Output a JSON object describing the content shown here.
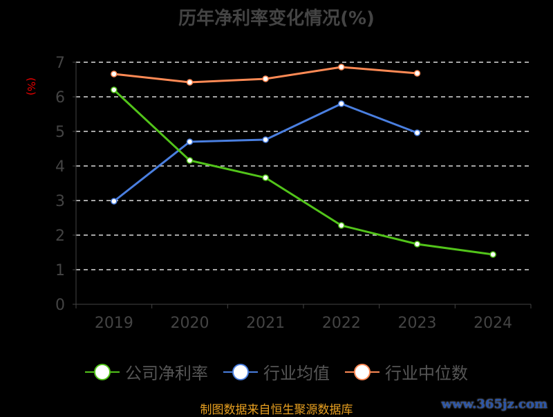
{
  "chart_data": {
    "type": "line",
    "title": "历年净利率变化情况(%)",
    "ylabel": "(%)",
    "xlabel": "",
    "categories": [
      "2019",
      "2020",
      "2021",
      "2022",
      "2023",
      "2024"
    ],
    "ylim": [
      0,
      7
    ],
    "yticks": [
      "0",
      "1",
      "2",
      "3",
      "4",
      "5",
      "6",
      "7"
    ],
    "grid": true,
    "legend_position": "bottom",
    "series": [
      {
        "name": "公司净利率",
        "color": "#52c41a",
        "values": [
          6.2,
          4.16,
          3.66,
          2.28,
          1.74,
          1.44
        ]
      },
      {
        "name": "行业均值",
        "color": "#4a7fe0",
        "values": [
          2.98,
          4.7,
          4.76,
          5.8,
          4.96,
          null
        ]
      },
      {
        "name": "行业中位数",
        "color": "#ff8a55",
        "values": [
          6.66,
          6.42,
          6.52,
          6.86,
          6.68,
          null
        ]
      }
    ]
  },
  "source": "制图数据来自恒生聚源数据库",
  "watermark": "www.365jz.com"
}
